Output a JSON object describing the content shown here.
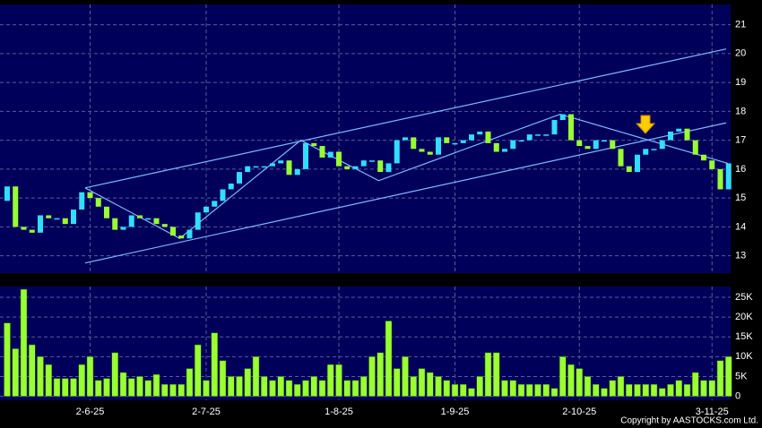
{
  "chart_data": [
    {
      "type": "candlestick",
      "categories": [
        null,
        null,
        null,
        null,
        null,
        null,
        null,
        null,
        null,
        null,
        "2-6-25",
        null,
        null,
        null,
        null,
        null,
        null,
        null,
        null,
        null,
        null,
        null,
        null,
        null,
        "2-7-25",
        null,
        null,
        null,
        null,
        null,
        null,
        null,
        null,
        null,
        null,
        null,
        null,
        null,
        null,
        null,
        "1-8-25",
        null,
        null,
        null,
        null,
        null,
        null,
        null,
        null,
        null,
        null,
        null,
        null,
        null,
        "1-9-25",
        null,
        null,
        null,
        null,
        null,
        null,
        null,
        null,
        null,
        null,
        null,
        null,
        null,
        null,
        "2-10-25",
        null,
        null,
        null,
        null,
        null,
        null,
        null,
        null,
        null,
        null,
        null,
        null,
        null,
        null,
        null,
        "3-11-25",
        null,
        null
      ],
      "open": [
        14.9,
        15.4,
        14.0,
        13.9,
        13.8,
        14.4,
        14.3,
        14.3,
        14.1,
        14.6,
        15.2,
        15.0,
        14.7,
        14.3,
        13.9,
        14.0,
        14.4,
        14.3,
        14.3,
        14.1,
        14.0,
        13.7,
        13.6,
        13.9,
        14.5,
        14.7,
        14.9,
        15.3,
        15.5,
        15.9,
        16.1,
        16.1,
        16.1,
        16.2,
        16.3,
        15.8,
        16.0,
        16.9,
        16.8,
        16.4,
        16.6,
        16.1,
        16.0,
        16.1,
        16.3,
        16.3,
        15.9,
        16.2,
        17.0,
        17.1,
        16.7,
        16.6,
        16.5,
        17.1,
        16.9,
        16.9,
        17.0,
        17.2,
        17.3,
        16.9,
        16.6,
        16.7,
        17.0,
        17.0,
        17.2,
        17.2,
        17.2,
        17.7,
        17.9,
        17.0,
        16.8,
        16.7,
        17.0,
        17.0,
        16.7,
        16.1,
        15.9,
        16.5,
        16.7,
        16.7,
        17.0,
        17.3,
        17.4,
        17.0,
        16.5,
        16.3,
        16.0,
        15.3
      ],
      "close": [
        15.4,
        14.0,
        13.9,
        13.8,
        14.4,
        14.3,
        14.3,
        14.1,
        14.6,
        15.2,
        15.0,
        14.7,
        14.3,
        13.9,
        14.0,
        14.4,
        14.3,
        14.3,
        14.1,
        14.0,
        13.7,
        13.6,
        13.9,
        14.5,
        14.7,
        14.9,
        15.3,
        15.5,
        15.9,
        16.1,
        16.1,
        16.1,
        16.2,
        16.3,
        15.8,
        16.0,
        16.9,
        16.8,
        16.4,
        16.6,
        16.1,
        16.0,
        16.1,
        16.3,
        16.3,
        15.9,
        16.2,
        17.0,
        17.1,
        16.7,
        16.6,
        16.5,
        17.1,
        16.9,
        16.9,
        17.0,
        17.2,
        17.3,
        16.9,
        16.6,
        16.7,
        17.0,
        17.0,
        17.2,
        17.2,
        17.2,
        17.7,
        17.9,
        17.0,
        16.8,
        16.7,
        17.0,
        17.0,
        16.7,
        16.1,
        15.9,
        16.5,
        16.7,
        16.7,
        17.0,
        17.3,
        17.4,
        17.0,
        16.5,
        16.3,
        16.0,
        15.3,
        16.2
      ],
      "up_color": "#33ddff",
      "down_color": "#99ff33",
      "ylim": [
        12.4,
        21.7
      ],
      "yticks": [
        13,
        14,
        15,
        16,
        17,
        18,
        19,
        20,
        21
      ],
      "grid": true,
      "trendlines": [
        {
          "x": [
            9.4,
            86.7
          ],
          "y": [
            15.35,
            20.16
          ]
        },
        {
          "x": [
            9.4,
            86.7
          ],
          "y": [
            12.75,
            17.6
          ]
        },
        {
          "x": [
            9.4,
            20.8,
            35.4,
            44.8,
            66.7,
            86.9
          ],
          "y": [
            15.35,
            13.6,
            17.0,
            15.6,
            17.9,
            16.2
          ]
        }
      ],
      "trendline_color": "#7fb8ff"
    },
    {
      "type": "bar",
      "values": [
        18500,
        12000,
        27000,
        13000,
        10000,
        8000,
        4500,
        4500,
        4500,
        8000,
        10000,
        4000,
        4500,
        11000,
        6000,
        4500,
        5000,
        4000,
        5500,
        3000,
        3000,
        3000,
        7000,
        13000,
        4000,
        16000,
        9000,
        5000,
        5000,
        7000,
        10000,
        5000,
        4000,
        5000,
        4000,
        3000,
        4000,
        5000,
        4000,
        8000,
        8000,
        4000,
        4000,
        5000,
        10000,
        11000,
        19000,
        7000,
        10000,
        5000,
        7000,
        6000,
        5000,
        4000,
        3000,
        3000,
        2000,
        5000,
        11000,
        11000,
        4000,
        4000,
        3000,
        3000,
        3000,
        3000,
        2000,
        10000,
        8000,
        7000,
        5000,
        3000,
        2000,
        4000,
        5000,
        3000,
        3000,
        3000,
        3000,
        2000,
        3000,
        4000,
        3000,
        6000,
        4000,
        4000,
        9000,
        10000
      ],
      "color": "#99ff33",
      "ylim": [
        -1000,
        27700
      ],
      "yticks": [
        0,
        {
          "value": 5000,
          "label": "5K"
        },
        {
          "value": 10000,
          "label": "10K"
        },
        {
          "value": 15000,
          "label": "15K"
        },
        {
          "value": 20000,
          "label": "20K"
        },
        {
          "value": 25000,
          "label": "25K"
        }
      ],
      "grid": true
    }
  ],
  "footer": "Copyright by AASTOCKS.com Ltd."
}
